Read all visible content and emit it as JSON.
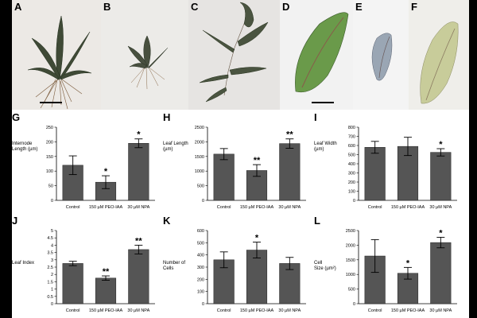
{
  "photos": [
    {
      "label": "A",
      "bg": "#ece9e5"
    },
    {
      "label": "B",
      "bg": "#ecebe8"
    },
    {
      "label": "C",
      "bg": "#e6e4e2"
    },
    {
      "label": "D",
      "bg": "#f2f2f2"
    },
    {
      "label": "E",
      "bg": "#f4f4f4"
    },
    {
      "label": "F",
      "bg": "#efeeea"
    }
  ],
  "colors": {
    "bar": "#555555",
    "axis": "#000000"
  },
  "chart_data": [
    {
      "panel": "G",
      "type": "bar",
      "ylabel": "Internode\nLength (µm)",
      "categories": [
        "Control",
        "150 µM PEO-IAA",
        "30 µM NPA"
      ],
      "values": [
        120,
        62,
        195
      ],
      "errors": [
        32,
        22,
        15
      ],
      "significance": [
        "",
        "*",
        "*"
      ],
      "ylim": [
        0,
        250
      ],
      "yticks": [
        0,
        50,
        100,
        150,
        200,
        250
      ]
    },
    {
      "panel": "H",
      "type": "bar",
      "ylabel": "Leaf Length\n(µm)",
      "categories": [
        "Control",
        "150 µM PEO-IAA",
        "30 µM NPA"
      ],
      "values": [
        1580,
        1020,
        1940
      ],
      "errors": [
        190,
        200,
        160
      ],
      "significance": [
        "",
        "**",
        "**"
      ],
      "ylim": [
        0,
        2500
      ],
      "yticks": [
        0,
        500,
        1000,
        1500,
        2000,
        2500
      ]
    },
    {
      "panel": "I",
      "type": "bar",
      "ylabel": "Leaf Width\n(µm)",
      "categories": [
        "Control",
        "150 µM PEO-IAA",
        "30 µM NPA"
      ],
      "values": [
        580,
        590,
        525
      ],
      "errors": [
        65,
        100,
        40
      ],
      "significance": [
        "",
        "",
        "*"
      ],
      "ylim": [
        0,
        800
      ],
      "yticks": [
        0,
        100,
        200,
        300,
        400,
        500,
        600,
        700,
        800
      ]
    },
    {
      "panel": "J",
      "type": "bar",
      "ylabel": "Leaf Index",
      "categories": [
        "Control",
        "150 µM PEO-IAA",
        "30 µM NPA"
      ],
      "values": [
        2.75,
        1.75,
        3.7
      ],
      "errors": [
        0.15,
        0.15,
        0.3
      ],
      "significance": [
        "",
        "**",
        "**"
      ],
      "ylim": [
        0,
        5
      ],
      "yticks": [
        0,
        0.5,
        1,
        1.5,
        2,
        2.5,
        3,
        3.5,
        4,
        4.5,
        5
      ]
    },
    {
      "panel": "K",
      "type": "bar",
      "ylabel": "Number of\nCells",
      "categories": [
        "Control",
        "150 µM PEO-IAA",
        "30 µM NPA"
      ],
      "values": [
        360,
        440,
        330
      ],
      "errors": [
        65,
        65,
        50
      ],
      "significance": [
        "",
        "*",
        ""
      ],
      "ylim": [
        0,
        600
      ],
      "yticks": [
        0,
        100,
        200,
        300,
        400,
        500,
        600
      ]
    },
    {
      "panel": "L",
      "type": "bar",
      "ylabel": "Cell\nSize (µm²)",
      "categories": [
        "Control",
        "150 µM PEO-IAA",
        "30 µM NPA"
      ],
      "values": [
        1630,
        1040,
        2090
      ],
      "errors": [
        560,
        200,
        180
      ],
      "significance": [
        "",
        "*",
        "*"
      ],
      "ylim": [
        0,
        2500
      ],
      "yticks": [
        0,
        500,
        1000,
        1500,
        2000,
        2500
      ]
    }
  ]
}
